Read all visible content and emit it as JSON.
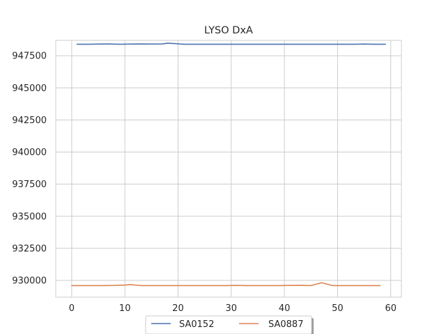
{
  "chart_data": {
    "type": "line",
    "title": "LYSO DxA",
    "xlabel": "",
    "ylabel": "",
    "xlim": [
      -3,
      62
    ],
    "ylim": [
      928700,
      948700
    ],
    "xticks": [
      0,
      10,
      20,
      30,
      40,
      50,
      60
    ],
    "yticks": [
      930000,
      932500,
      935000,
      937500,
      940000,
      942500,
      945000,
      947500
    ],
    "ytick_labels": [
      "930000",
      "932500",
      "935000",
      "937500",
      "940000",
      "942500",
      "945000",
      "947500"
    ],
    "grid": true,
    "legend_position": "bottom-center",
    "series": [
      {
        "name": "SA0152",
        "color": "#4c72b0",
        "x": [
          1,
          3,
          5,
          7,
          9,
          11,
          13,
          15,
          17,
          18,
          19,
          21,
          23,
          25,
          27,
          29,
          31,
          33,
          35,
          37,
          39,
          41,
          43,
          45,
          47,
          49,
          51,
          53,
          55,
          57,
          59
        ],
        "y": [
          948400,
          948400,
          948410,
          948420,
          948400,
          948410,
          948420,
          948410,
          948420,
          948480,
          948460,
          948400,
          948400,
          948400,
          948400,
          948400,
          948400,
          948400,
          948400,
          948400,
          948400,
          948400,
          948400,
          948400,
          948400,
          948400,
          948400,
          948400,
          948410,
          948400,
          948400
        ]
      },
      {
        "name": "SA0887",
        "color": "#dd8452",
        "x": [
          0,
          2,
          4,
          6,
          8,
          10,
          11,
          13,
          15,
          17,
          19,
          21,
          23,
          25,
          27,
          29,
          31,
          33,
          35,
          37,
          39,
          41,
          43,
          45,
          47,
          49,
          51,
          53,
          55,
          58
        ],
        "y": [
          929600,
          929600,
          929600,
          929600,
          929610,
          929640,
          929670,
          929600,
          929600,
          929600,
          929600,
          929600,
          929600,
          929600,
          929600,
          929600,
          929610,
          929600,
          929600,
          929600,
          929600,
          929610,
          929620,
          929600,
          929820,
          929600,
          929600,
          929600,
          929600,
          929600
        ]
      }
    ]
  }
}
